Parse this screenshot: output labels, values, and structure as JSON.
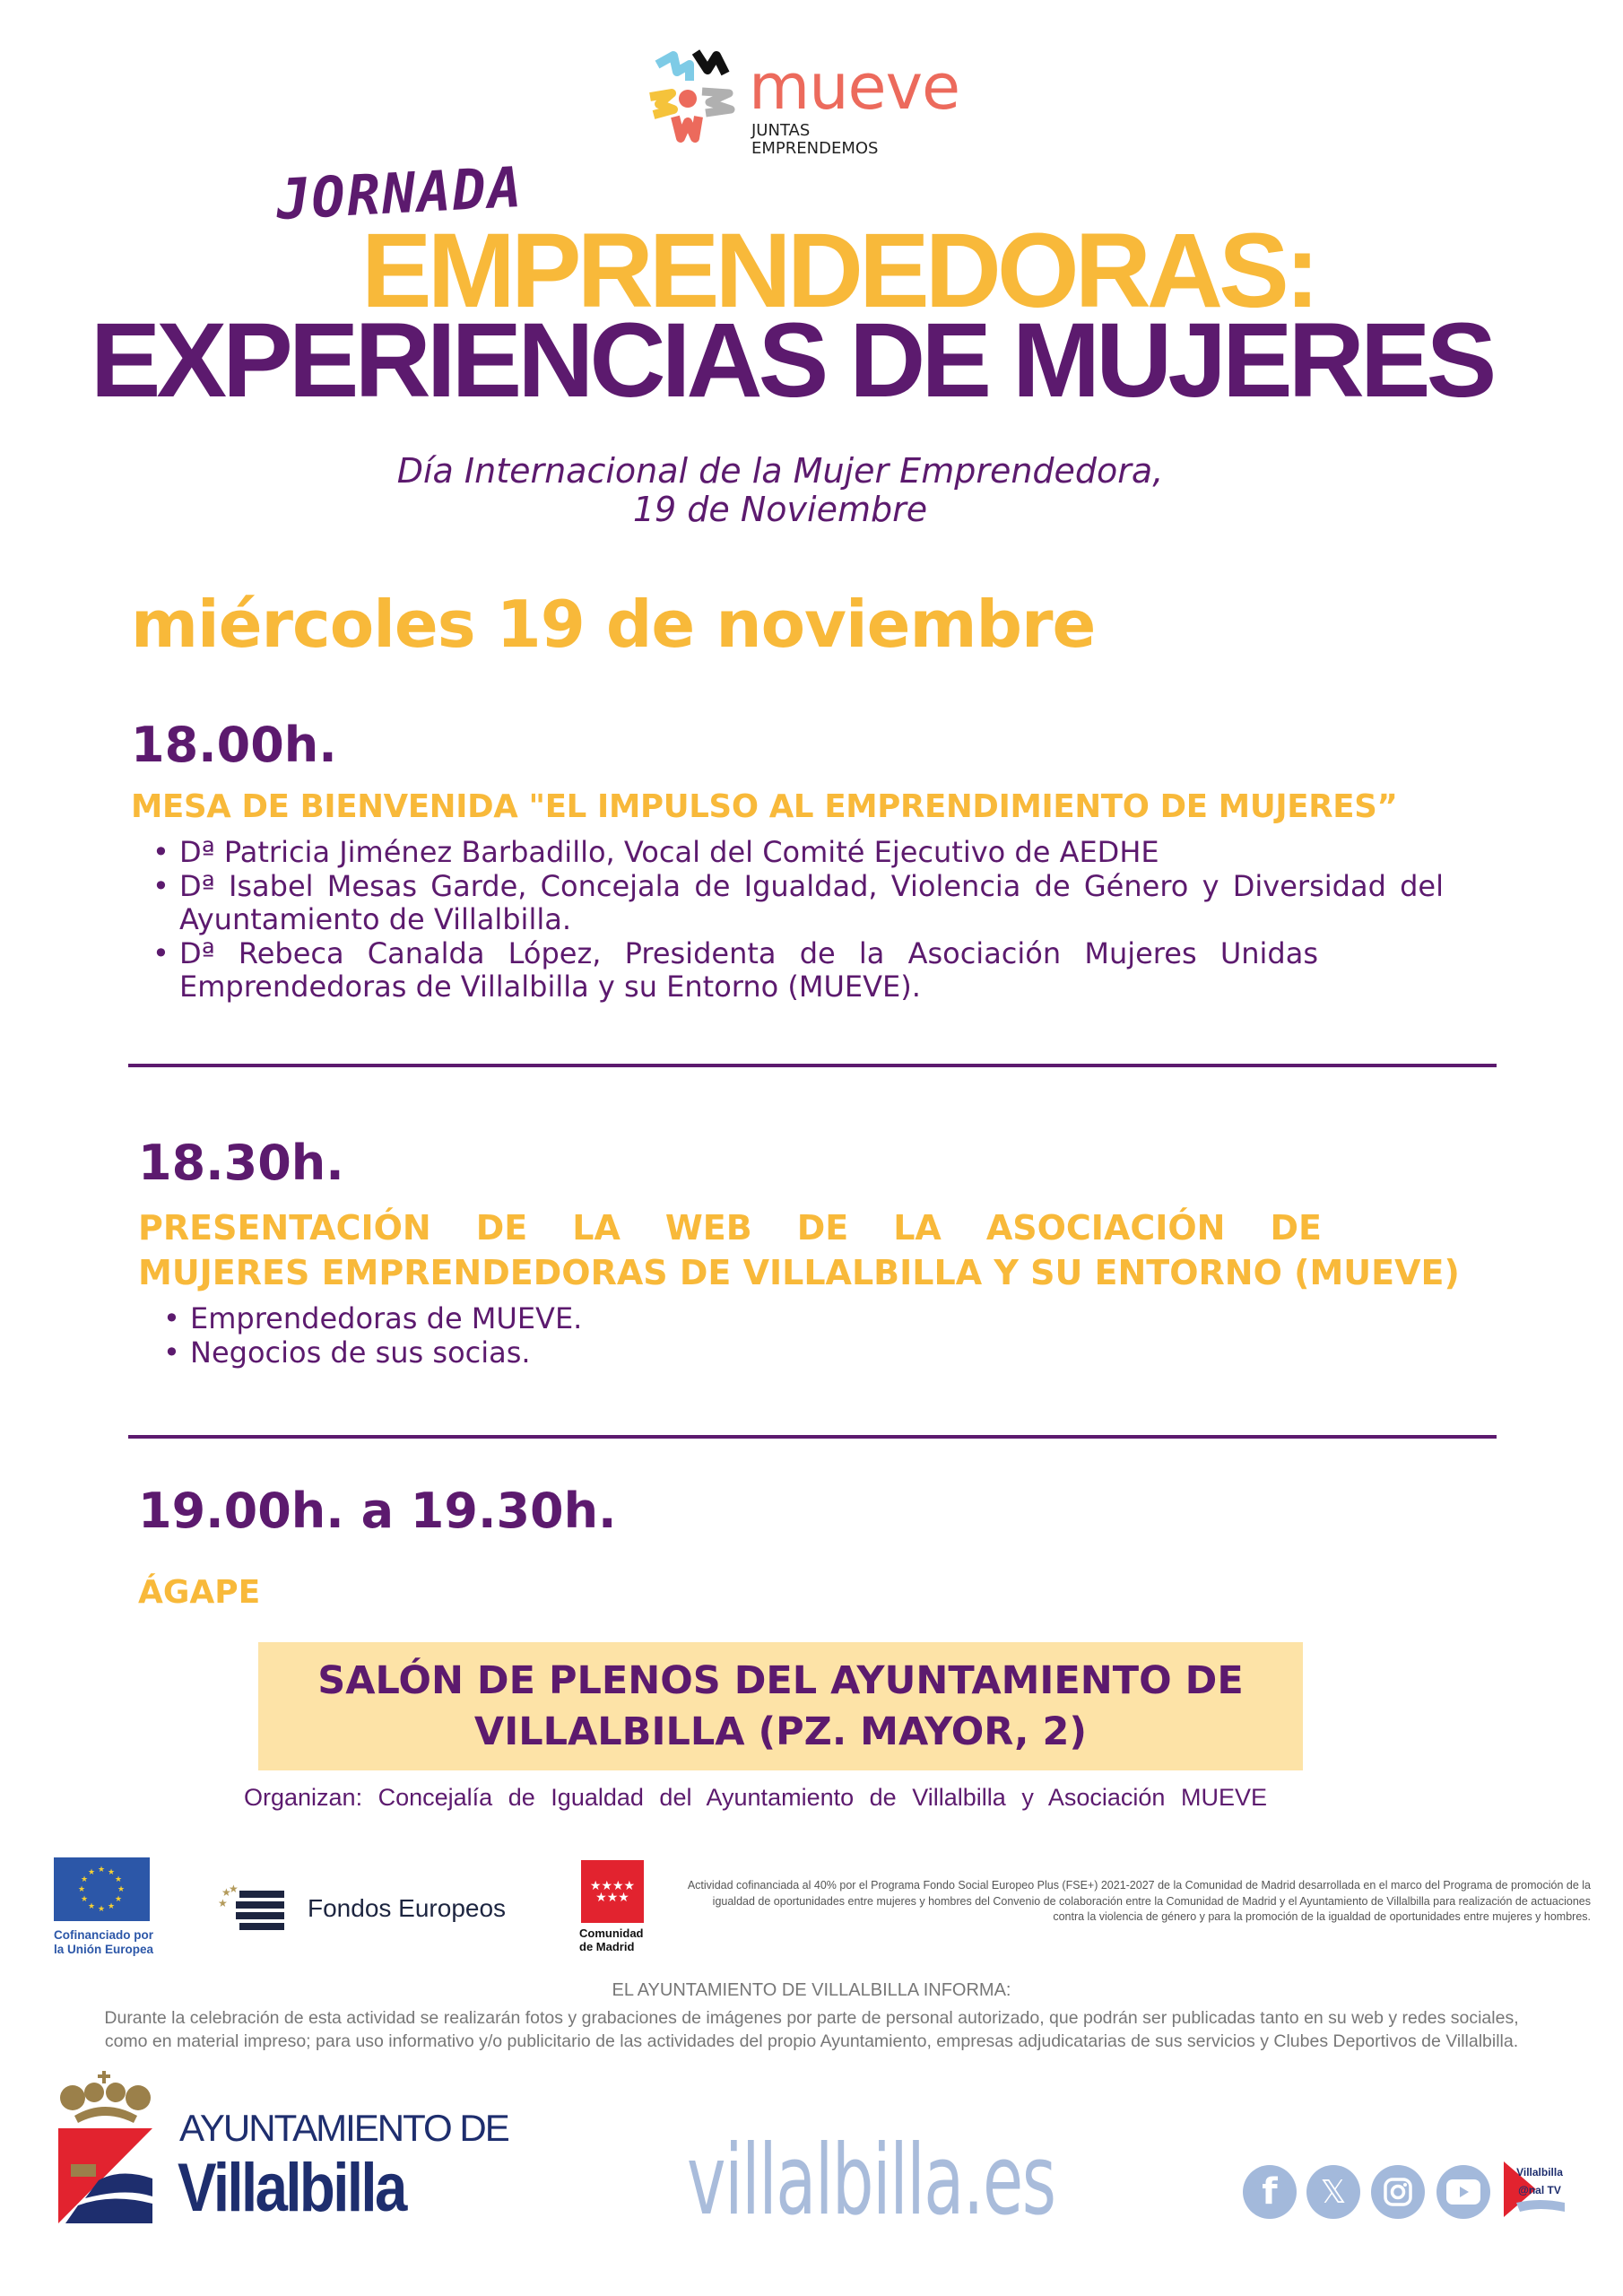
{
  "logo": {
    "name": "mueve",
    "tagline_1": "JUNTAS",
    "tagline_2": "EMPRENDEMOS"
  },
  "title": {
    "kicker": "JORNADA",
    "line1": "EMPRENDEDORAS:",
    "line2": "EXPERIENCIAS DE MUJERES"
  },
  "subtitle": {
    "line1": "Día Internacional de la Mujer Emprendedora,",
    "line2": "19 de Noviembre"
  },
  "date": "miércoles 19 de noviembre",
  "sessions": [
    {
      "time": "18.00h.",
      "heading": "MESA DE BIENVENIDA \"EL IMPULSO AL EMPRENDIMIENTO DE MUJERES”",
      "items": [
        "Dª Patricia Jiménez Barbadillo, Vocal del Comité Ejecutivo de AEDHE",
        "Dª Isabel Mesas Garde, Concejala de Igualdad, Violencia de Género y Diversidad del Ayuntamiento de Villalbilla.",
        "Dª Rebeca Canalda López, Presidenta de la Asociación Mujeres Unidas Emprendedoras de Villalbilla y su Entorno (MUEVE)."
      ]
    },
    {
      "time": "18.30h.",
      "heading_line1": "PRESENTACIÓN DE LA WEB DE LA ASOCIACIÓN DE",
      "heading_line2": "MUJERES EMPRENDEDORAS DE VILLALBILLA Y SU ENTORNO (MUEVE)",
      "items": [
        "Emprendedoras de MUEVE.",
        "Negocios de sus socias."
      ]
    },
    {
      "time": "19.00h. a 19.30h.",
      "heading": "ÁGAPE"
    }
  ],
  "venue": {
    "line1": "SALÓN DE PLENOS DEL AYUNTAMIENTO DE",
    "line2": "VILLALBILLA (PZ. MAYOR, 2)"
  },
  "organizers": "Organizan: Concejalía de Igualdad del Ayuntamiento de Villalbilla y Asociación MUEVE",
  "sponsors": {
    "eu_caption_1": "Cofinanciado por",
    "eu_caption_2": "la Unión Europea",
    "fondos": "Fondos Europeos",
    "madrid_1": "Comunidad",
    "madrid_2": "de Madrid",
    "fine_print": "Actividad cofinanciada al 40% por el Programa Fondo Social Europeo Plus (FSE+) 2021-2027 de la Comunidad de Madrid desarrollada en el marco del Programa de promoción de la igualdad de oportunidades entre mujeres y hombres del Convenio de colaboración entre la Comunidad de Madrid y el Ayuntamiento de Villalbilla para realización de actuaciones contra la violencia de género y para la promoción de la igualdad de oportunidades entre mujeres y hombres."
  },
  "notice": {
    "title": "EL AYUNTAMIENTO DE VILLALBILLA INFORMA:",
    "line1": "Durante la celebración de esta actividad se realizarán fotos y grabaciones de imágenes por parte de personal autorizado, que podrán ser publicadas tanto en su web y redes sociales,",
    "line2": "como en material impreso; para uso informativo y/o publicitario de las actividades del propio Ayuntamiento, empresas adjudicatarias de sus servicios y Clubes Deportivos de Villalbilla."
  },
  "footer": {
    "ayto_line1": "AYUNTAMIENTO DE",
    "ayto_line2": "Villalbilla",
    "website": "villalbilla.es",
    "social_icons": [
      "facebook-icon",
      "x-icon",
      "instagram-icon",
      "youtube-icon",
      "canal-tv-logo"
    ],
    "canal_tv_label": "Villalbilla @nal TV"
  },
  "colors": {
    "purple": "#5c1a6e",
    "yellow": "#f8b93a",
    "venue_bg": "#fde3a7",
    "web_blue": "#a9bcdb",
    "logo_coral": "#ec6a5c"
  }
}
